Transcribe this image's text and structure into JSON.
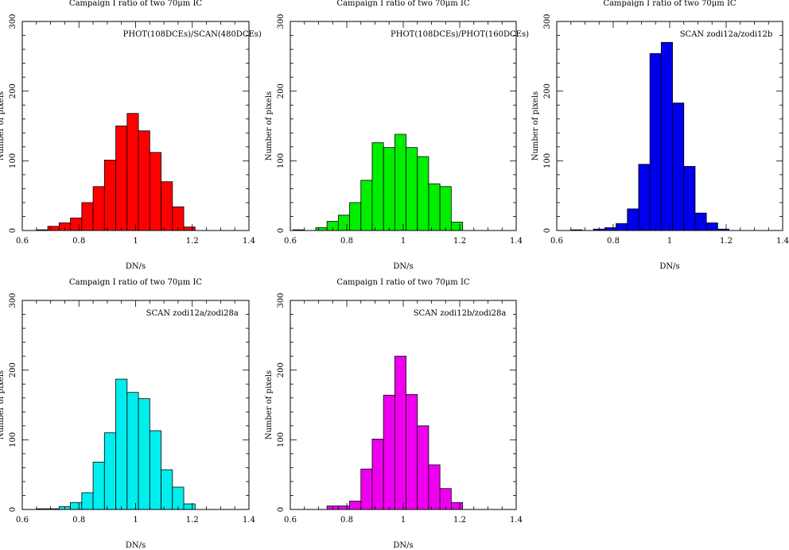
{
  "chart_data": [
    {
      "type": "bar",
      "title": "Campaign I ratio of two 70μm IC",
      "annotation": "PHOT(108DCEs)/SCAN(480DCEs)",
      "xlabel": "DN/s",
      "ylabel": "Number of pixels",
      "xlim": [
        0.6,
        1.4
      ],
      "ylim": [
        0,
        300
      ],
      "xticks": [
        "0.6",
        "0.8",
        "1",
        "1.2",
        "1.4"
      ],
      "yticks": [
        "0",
        "100",
        "200",
        "300"
      ],
      "color": "#ff0000",
      "bin_width": 0.04,
      "bin_starts": [
        0.65,
        0.69,
        0.73,
        0.77,
        0.81,
        0.85,
        0.89,
        0.93,
        0.97,
        1.01,
        1.05,
        1.09,
        1.13,
        1.17,
        1.21
      ],
      "values": [
        1,
        6,
        11,
        18,
        40,
        63,
        101,
        150,
        168,
        143,
        112,
        70,
        34,
        5,
        0
      ]
    },
    {
      "type": "bar",
      "title": "Campaign I ratio of two 70μm IC",
      "annotation": "PHOT(108DCEs)/PHOT(160DCEs)",
      "xlabel": "DN/s",
      "ylabel": "Number of pixels",
      "xlim": [
        0.6,
        1.4
      ],
      "ylim": [
        0,
        300
      ],
      "xticks": [
        "0.6",
        "0.8",
        "1",
        "1.2",
        "1.4"
      ],
      "yticks": [
        "0",
        "100",
        "200",
        "300"
      ],
      "color": "#00ee00",
      "bin_width": 0.04,
      "bin_starts": [
        0.61,
        0.65,
        0.69,
        0.73,
        0.77,
        0.81,
        0.85,
        0.89,
        0.93,
        0.97,
        1.01,
        1.05,
        1.09,
        1.13,
        1.17,
        1.21
      ],
      "values": [
        1,
        0,
        4,
        13,
        22,
        40,
        72,
        126,
        119,
        138,
        119,
        106,
        67,
        63,
        12,
        0
      ]
    },
    {
      "type": "bar",
      "title": "Campaign I ratio of two 70μm IC",
      "annotation": "SCAN zodi12a/zodi12b",
      "xlabel": "DN/s",
      "ylabel": "Number of pixels",
      "xlim": [
        0.6,
        1.4
      ],
      "ylim": [
        0,
        300
      ],
      "xticks": [
        "0.6",
        "0.8",
        "1",
        "1.2",
        "1.4"
      ],
      "yticks": [
        "0",
        "100",
        "200",
        "300"
      ],
      "color": "#0000ee",
      "bin_width": 0.04,
      "bin_starts": [
        0.65,
        0.69,
        0.73,
        0.77,
        0.81,
        0.85,
        0.89,
        0.93,
        0.97,
        1.01,
        1.05,
        1.09,
        1.13,
        1.17,
        1.21
      ],
      "values": [
        1,
        0,
        2,
        4,
        10,
        31,
        95,
        254,
        270,
        183,
        92,
        25,
        11,
        2,
        0
      ]
    },
    {
      "type": "bar",
      "title": "Campaign I ratio of two 70μm IC",
      "annotation": "SCAN zodi12a/zodi28a",
      "xlabel": "DN/s",
      "ylabel": "Number of pixels",
      "xlim": [
        0.6,
        1.4
      ],
      "ylim": [
        0,
        300
      ],
      "xticks": [
        "0.6",
        "0.8",
        "1",
        "1.2",
        "1.4"
      ],
      "yticks": [
        "0",
        "100",
        "200",
        "300"
      ],
      "color": "#00eeee",
      "bin_width": 0.04,
      "bin_starts": [
        0.65,
        0.69,
        0.73,
        0.77,
        0.81,
        0.85,
        0.89,
        0.93,
        0.97,
        1.01,
        1.05,
        1.09,
        1.13,
        1.17,
        1.21
      ],
      "values": [
        1,
        1,
        4,
        10,
        24,
        68,
        110,
        187,
        168,
        159,
        113,
        57,
        32,
        8,
        0
      ]
    },
    {
      "type": "bar",
      "title": "Campaign I ratio of two 70μm IC",
      "annotation": "SCAN zodi12b/zodi28a",
      "xlabel": "DN/s",
      "ylabel": "Number of pixels",
      "xlim": [
        0.6,
        1.4
      ],
      "ylim": [
        0,
        300
      ],
      "xticks": [
        "0.6",
        "0.8",
        "1",
        "1.2",
        "1.4"
      ],
      "yticks": [
        "0",
        "100",
        "200",
        "300"
      ],
      "color": "#ee00ee",
      "bin_width": 0.04,
      "bin_starts": [
        0.73,
        0.77,
        0.81,
        0.85,
        0.89,
        0.93,
        0.97,
        1.01,
        1.05,
        1.09,
        1.13,
        1.17,
        1.21
      ],
      "values": [
        5,
        5,
        12,
        58,
        101,
        164,
        220,
        165,
        120,
        64,
        30,
        10,
        0
      ]
    }
  ]
}
